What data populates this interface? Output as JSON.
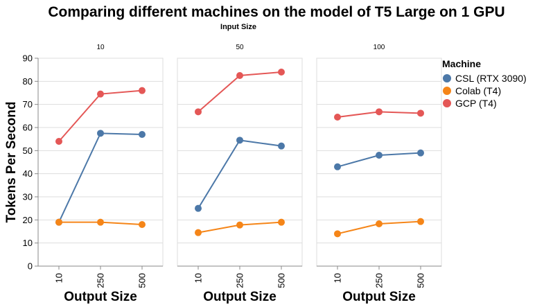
{
  "chart_data": {
    "type": "line",
    "title": "Comparing different machines on the model of T5 Large on 1 GPU",
    "facet_title": "Input Size",
    "xlabel": "Output Size",
    "ylabel": "Tokens Per Second",
    "ylim": [
      0,
      90
    ],
    "yticks": [
      "0",
      "10",
      "20",
      "30",
      "40",
      "50",
      "60",
      "70",
      "80",
      "90"
    ],
    "categories": [
      "10",
      "250",
      "500"
    ],
    "legend": {
      "title": "Machine",
      "position": "right"
    },
    "series_meta": [
      {
        "name": "CSL (RTX 3090)",
        "color": "#4c78a8"
      },
      {
        "name": "Colab (T4)",
        "color": "#f58518"
      },
      {
        "name": "GCP (T4)",
        "color": "#e45756"
      }
    ],
    "facets": [
      {
        "label": "10",
        "series": [
          {
            "name": "CSL (RTX 3090)",
            "values": [
              19,
              57.5,
              57
            ]
          },
          {
            "name": "Colab (T4)",
            "values": [
              19,
              19,
              18
            ]
          },
          {
            "name": "GCP (T4)",
            "values": [
              54,
              74.5,
              76
            ]
          }
        ]
      },
      {
        "label": "50",
        "series": [
          {
            "name": "CSL (RTX 3090)",
            "values": [
              25,
              54.5,
              52
            ]
          },
          {
            "name": "Colab (T4)",
            "values": [
              14.5,
              17.8,
              19
            ]
          },
          {
            "name": "GCP (T4)",
            "values": [
              66.8,
              82.5,
              84
            ]
          }
        ]
      },
      {
        "label": "100",
        "series": [
          {
            "name": "CSL (RTX 3090)",
            "values": [
              43,
              48,
              49
            ]
          },
          {
            "name": "Colab (T4)",
            "values": [
              14,
              18.3,
              19.3
            ]
          },
          {
            "name": "GCP (T4)",
            "values": [
              64.5,
              66.8,
              66.2
            ]
          }
        ]
      }
    ]
  }
}
